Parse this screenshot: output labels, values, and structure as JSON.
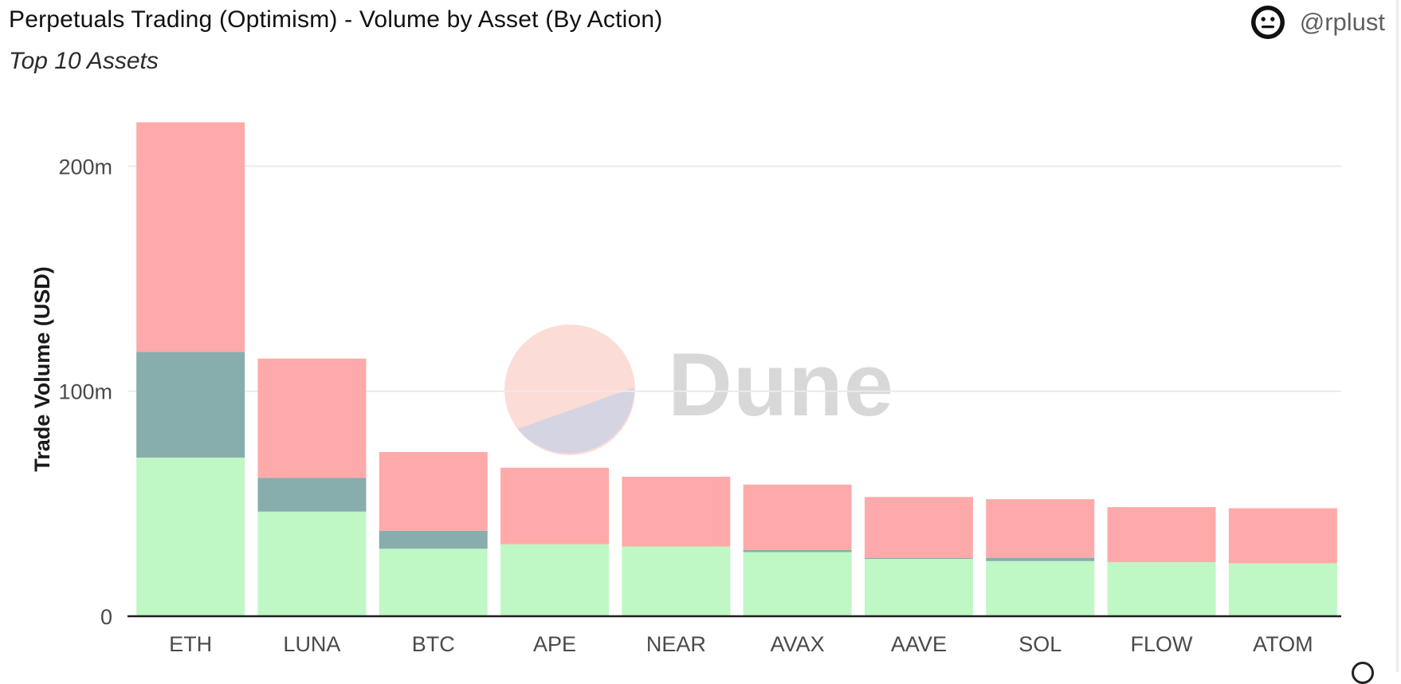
{
  "header": {
    "title": "Perpetuals Trading (Optimism) - Volume by Asset (By Action)",
    "subtitle": "Top 10 Assets",
    "author_handle": "@rplust",
    "author_icon": "neutral-face-icon"
  },
  "watermark": {
    "text": "Dune",
    "icon": "dune-logo-icon"
  },
  "colors": {
    "series_top": "#ffaaaa",
    "series_middle": "#88adad",
    "series_bottom": "#bff7c5",
    "grid": "#ebebeb",
    "axis": "#1f1f1f",
    "tick_text": "#4a4a4a",
    "watermark_pink": "#fcdcd6",
    "watermark_lavender": "#d4d4e2"
  },
  "chart_data": {
    "type": "bar",
    "stacked": true,
    "categories": [
      "ETH",
      "LUNA",
      "BTC",
      "APE",
      "NEAR",
      "AVAX",
      "AAVE",
      "SOL",
      "FLOW",
      "ATOM"
    ],
    "series": [
      {
        "values": [
          70.5,
          46.5,
          30.0,
          32.0,
          31.0,
          28.5,
          25.5,
          24.5,
          24.0,
          23.5
        ]
      },
      {
        "values": [
          47.0,
          15.0,
          8.0,
          0.0,
          0.0,
          1.0,
          0.5,
          1.5,
          0.0,
          0.0
        ]
      },
      {
        "values": [
          102.0,
          53.0,
          35.0,
          34.0,
          31.0,
          29.0,
          27.0,
          26.0,
          24.5,
          24.5
        ]
      }
    ],
    "title": "Perpetuals Trading (Optimism) - Volume by Asset (By Action)",
    "subtitle": "Top 10 Assets",
    "xlabel": "",
    "ylabel": "Trade Volume (USD)",
    "ylim": [
      0,
      220
    ],
    "yticks": [
      0,
      100,
      200
    ],
    "ytick_labels": [
      "0",
      "100m",
      "200m"
    ],
    "grid": true,
    "legend": "none"
  }
}
